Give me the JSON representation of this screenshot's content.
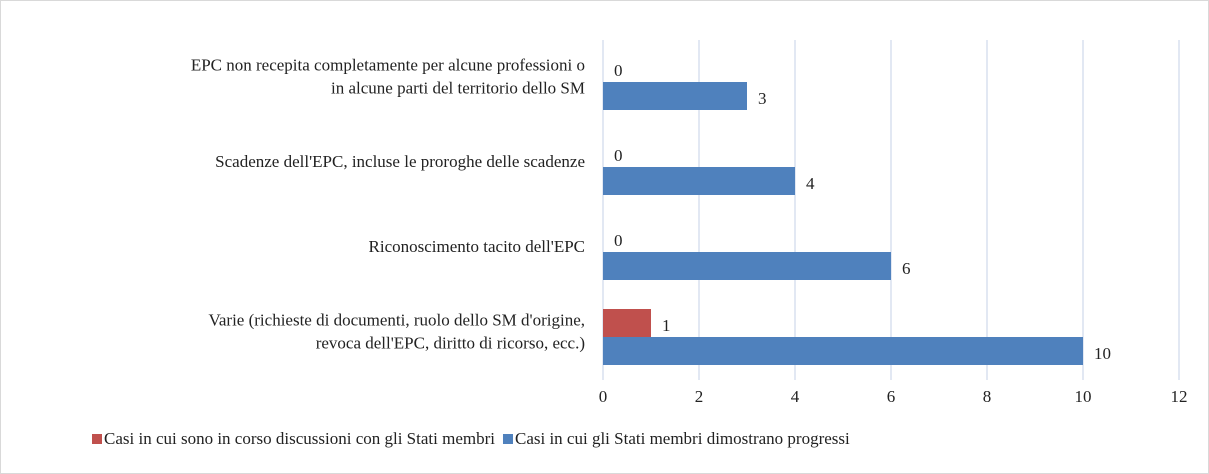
{
  "chart_data": {
    "type": "bar",
    "orientation": "horizontal",
    "categories": [
      [
        "EPC non recepita completamente per alcune professioni o",
        "in alcune parti del territorio dello SM"
      ],
      [
        "Scadenze dell'EPC, incluse le proroghe delle scadenze"
      ],
      [
        "Riconoscimento tacito dell'EPC"
      ],
      [
        "Varie (richieste di documenti, ruolo dello SM d'origine,",
        "revoca dell'EPC, diritto di ricorso, ecc.)"
      ]
    ],
    "series": [
      {
        "name": "Casi in cui sono in corso discussioni con gli Stati membri",
        "color": "#c0504d",
        "values": [
          0,
          0,
          0,
          1
        ]
      },
      {
        "name": "Casi in cui gli Stati membri dimostrano progressi",
        "color": "#4f81bd",
        "values": [
          3,
          4,
          6,
          10
        ]
      }
    ],
    "xlim": [
      0,
      12
    ],
    "xticks": [
      0,
      2,
      4,
      6,
      8,
      10,
      12
    ],
    "grid": true,
    "legend": "bottom"
  }
}
